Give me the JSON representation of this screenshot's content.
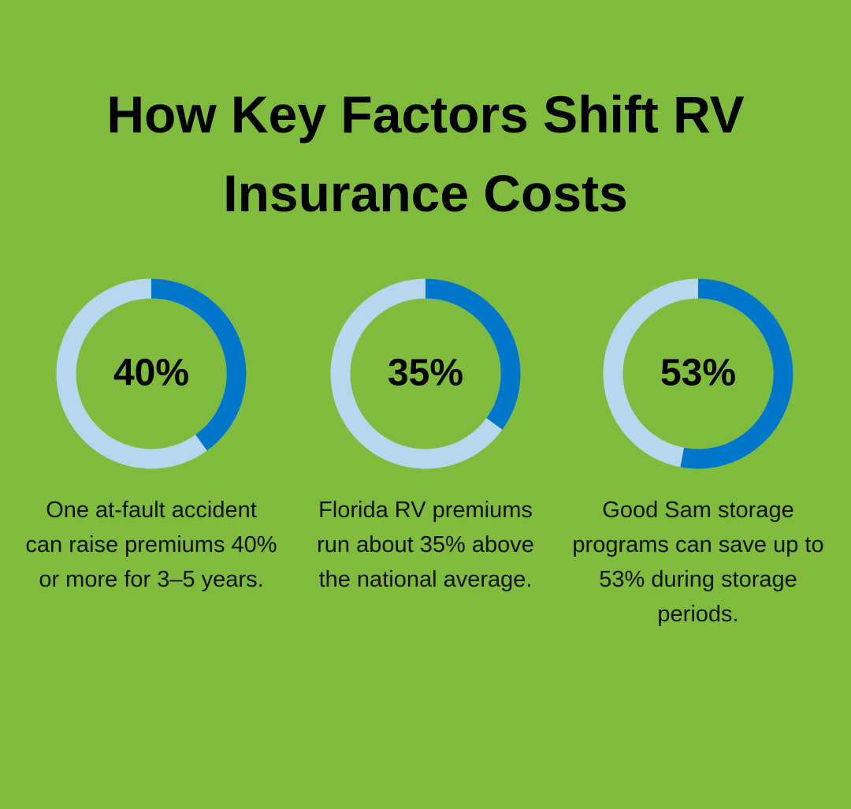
{
  "title": "How Key Factors Shift RV Insurance Costs",
  "chart_data": [
    {
      "type": "donut",
      "values": [
        40
      ],
      "value_labels": [
        "40%"
      ],
      "color": "#0077c8",
      "track_color": "#b7d7ee",
      "caption": "One at-fault accident can raise premiums 40% or more for 3–5 years."
    },
    {
      "type": "donut",
      "values": [
        35
      ],
      "value_labels": [
        "35%"
      ],
      "color": "#0077c8",
      "track_color": "#b7d7ee",
      "caption": "Florida RV premiums run about 35% above the national average."
    },
    {
      "type": "donut",
      "values": [
        53
      ],
      "value_labels": [
        "53%"
      ],
      "color": "#0077c8",
      "track_color": "#b7d7ee",
      "caption": "Good Sam storage programs can save up to 53% during storage periods."
    }
  ]
}
